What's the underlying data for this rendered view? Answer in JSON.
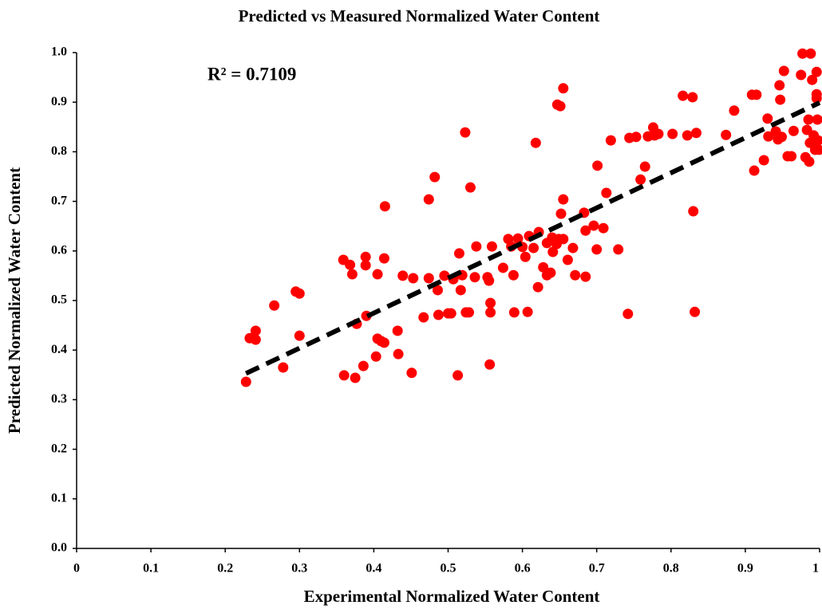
{
  "chart_data": {
    "type": "scatter",
    "title": "Predicted vs Measured Normalized Water Content",
    "x_label": "Experimental Normalized Water Content",
    "y_label": "Predicted Normalized Water Content",
    "annotation": "R² = 0.7109",
    "xlim": [
      0,
      1
    ],
    "ylim": [
      0,
      1
    ],
    "xticks": [
      0,
      0.1,
      0.2,
      0.3,
      0.4,
      0.5,
      0.6,
      0.7,
      0.8,
      0.9,
      1
    ],
    "yticks": [
      {
        "value": 0,
        "label": "0.0"
      },
      0.1,
      0.2,
      0.3,
      0.4,
      0.5,
      0.6,
      0.7,
      0.8,
      0.9,
      {
        "value": 1,
        "label": "1.0"
      }
    ],
    "series": [
      {
        "color": "#ff0000",
        "x": [
          0.228,
          0.233,
          0.241,
          0.241,
          0.266,
          0.278,
          0.295,
          0.3,
          0.3,
          0.359,
          0.36,
          0.368,
          0.371,
          0.375,
          0.377,
          0.386,
          0.389,
          0.389,
          0.39,
          0.403,
          0.405,
          0.405,
          0.41,
          0.414,
          0.414,
          0.415,
          0.432,
          0.433,
          0.439,
          0.451,
          0.453,
          0.467,
          0.474,
          0.474,
          0.482,
          0.486,
          0.487,
          0.495,
          0.5,
          0.504,
          0.507,
          0.513,
          0.515,
          0.517,
          0.519,
          0.523,
          0.524,
          0.528,
          0.53,
          0.536,
          0.538,
          0.553,
          0.555,
          0.556,
          0.557,
          0.557,
          0.559,
          0.574,
          0.581,
          0.585,
          0.588,
          0.589,
          0.594,
          0.6,
          0.604,
          0.607,
          0.609,
          0.615,
          0.618,
          0.621,
          0.622,
          0.628,
          0.633,
          0.633,
          0.638,
          0.64,
          0.641,
          0.646,
          0.647,
          0.649,
          0.651,
          0.652,
          0.655,
          0.655,
          0.655,
          0.661,
          0.668,
          0.671,
          0.683,
          0.685,
          0.685,
          0.696,
          0.701,
          0.7,
          0.709,
          0.713,
          0.719,
          0.729,
          0.742,
          0.744,
          0.753,
          0.759,
          0.765,
          0.769,
          0.776,
          0.778,
          0.783,
          0.802,
          0.816,
          0.822,
          0.829,
          0.83,
          0.832,
          0.834,
          0.874,
          0.885,
          0.909,
          0.912,
          0.915,
          0.925,
          0.93,
          0.931,
          0.941,
          0.944,
          0.946,
          0.947,
          0.949,
          0.952,
          0.957,
          0.962,
          0.965,
          0.975,
          0.977,
          0.981,
          0.983,
          0.985,
          0.986,
          0.987,
          0.988,
          0.99,
          0.992,
          0.994,
          0.996,
          0.996,
          0.996,
          0.997,
          0.998,
          0.999
        ],
        "values": [
          0.336,
          0.424,
          0.439,
          0.421,
          0.49,
          0.365,
          0.518,
          0.514,
          0.429,
          0.582,
          0.349,
          0.572,
          0.553,
          0.344,
          0.453,
          0.368,
          0.588,
          0.571,
          0.469,
          0.387,
          0.423,
          0.553,
          0.418,
          0.585,
          0.415,
          0.69,
          0.439,
          0.392,
          0.55,
          0.354,
          0.545,
          0.466,
          0.704,
          0.545,
          0.749,
          0.521,
          0.471,
          0.55,
          0.474,
          0.474,
          0.543,
          0.349,
          0.595,
          0.521,
          0.551,
          0.839,
          0.476,
          0.476,
          0.728,
          0.547,
          0.609,
          0.547,
          0.54,
          0.371,
          0.495,
          0.476,
          0.609,
          0.566,
          0.624,
          0.609,
          0.551,
          0.476,
          0.625,
          0.608,
          0.588,
          0.477,
          0.63,
          0.606,
          0.818,
          0.527,
          0.638,
          0.567,
          0.616,
          0.551,
          0.556,
          0.627,
          0.598,
          0.614,
          0.895,
          0.624,
          0.892,
          0.675,
          0.704,
          0.624,
          0.928,
          0.582,
          0.606,
          0.551,
          0.677,
          0.641,
          0.548,
          0.651,
          0.772,
          0.603,
          0.646,
          0.717,
          0.823,
          0.603,
          0.473,
          0.828,
          0.83,
          0.744,
          0.77,
          0.831,
          0.849,
          0.833,
          0.836,
          0.836,
          0.913,
          0.833,
          0.91,
          0.68,
          0.477,
          0.838,
          0.834,
          0.883,
          0.915,
          0.762,
          0.915,
          0.783,
          0.867,
          0.831,
          0.841,
          0.825,
          0.934,
          0.905,
          0.83,
          0.963,
          0.791,
          0.791,
          0.842,
          0.955,
          0.998,
          0.789,
          0.844,
          0.865,
          0.78,
          0.818,
          0.998,
          0.945,
          0.833,
          0.804,
          0.961,
          0.916,
          0.908,
          0.865,
          0.823,
          0.804
        ]
      }
    ],
    "trendline": {
      "color": "#000000",
      "x": [
        0.228,
        1
      ],
      "values": [
        0.353,
        0.899
      ]
    }
  }
}
